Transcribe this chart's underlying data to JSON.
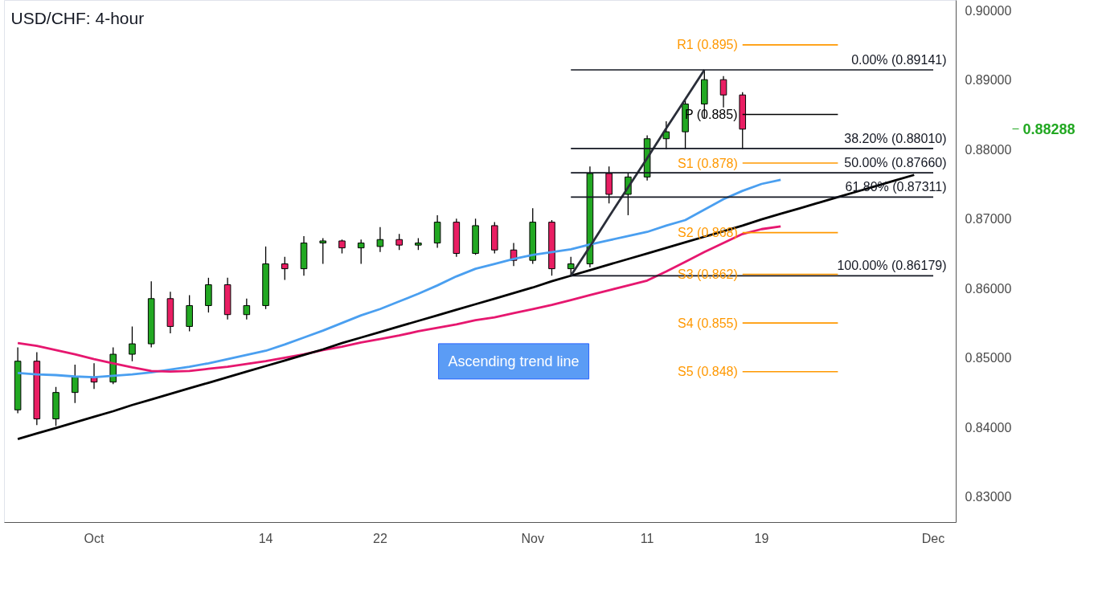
{
  "chart_data": {
    "type": "candlestick",
    "title": "USD/CHF: 4-hour",
    "categories": [
      null,
      null,
      null,
      null,
      "Oct",
      null,
      null,
      null,
      null,
      null,
      null,
      null,
      null,
      "14",
      null,
      null,
      null,
      null,
      null,
      "22",
      null,
      null,
      null,
      null,
      null,
      null,
      null,
      "Nov",
      null,
      null,
      null,
      null,
      null,
      "11",
      null,
      null,
      null,
      null,
      null,
      "19",
      null,
      null,
      null,
      null,
      null,
      null,
      null,
      null,
      "Dec"
    ],
    "ylim": [
      0.8263,
      0.9014
    ],
    "yticks": [
      {
        "value": 0.83,
        "label": "0.83000"
      },
      {
        "value": 0.84,
        "label": "0.84000"
      },
      {
        "value": 0.85,
        "label": "0.85000"
      },
      {
        "value": 0.86,
        "label": "0.86000"
      },
      {
        "value": 0.87,
        "label": "0.87000"
      },
      {
        "value": 0.88,
        "label": "0.88000"
      },
      {
        "value": 0.89,
        "label": "0.89000"
      },
      {
        "value": 0.9,
        "label": "0.90000"
      }
    ],
    "legend": false,
    "series": [
      {
        "ohlc": [
          [
            0.8425,
            0.8515,
            0.842,
            0.8495
          ],
          [
            0.8495,
            0.8508,
            0.8403,
            0.8412
          ],
          [
            0.8412,
            0.8458,
            0.8402,
            0.845
          ],
          [
            0.845,
            0.849,
            0.8435,
            0.8472
          ],
          [
            0.8472,
            0.8492,
            0.8455,
            0.8465
          ],
          [
            0.8465,
            0.8515,
            0.8462,
            0.8505
          ],
          [
            0.8505,
            0.8545,
            0.8495,
            0.852
          ],
          [
            0.852,
            0.861,
            0.8515,
            0.8585
          ],
          [
            0.8585,
            0.8595,
            0.8535,
            0.8545
          ],
          [
            0.8545,
            0.859,
            0.8538,
            0.8575
          ],
          [
            0.8575,
            0.8615,
            0.8565,
            0.8605
          ],
          [
            0.8605,
            0.8615,
            0.8555,
            0.8562
          ],
          [
            0.8562,
            0.8585,
            0.8555,
            0.8575
          ],
          [
            0.8575,
            0.866,
            0.857,
            0.8635
          ],
          [
            0.8635,
            0.8645,
            0.8612,
            0.8628
          ],
          [
            0.8628,
            0.8675,
            0.8618,
            0.8665
          ],
          [
            0.8665,
            0.8672,
            0.8635,
            0.8668
          ],
          [
            0.8668,
            0.867,
            0.865,
            0.8658
          ],
          [
            0.8658,
            0.867,
            0.8635,
            0.8665
          ],
          [
            0.866,
            0.8688,
            0.8652,
            0.867
          ],
          [
            0.867,
            0.8678,
            0.8655,
            0.8662
          ],
          [
            0.8662,
            0.8672,
            0.8655,
            0.8665
          ],
          [
            0.8665,
            0.8705,
            0.8658,
            0.8695
          ],
          [
            0.8695,
            0.87,
            0.8645,
            0.865
          ],
          [
            0.865,
            0.87,
            0.8648,
            0.869
          ],
          [
            0.869,
            0.8695,
            0.865,
            0.8655
          ],
          [
            0.8655,
            0.8665,
            0.8632,
            0.864
          ],
          [
            0.864,
            0.8715,
            0.8635,
            0.8695
          ],
          [
            0.8695,
            0.8698,
            0.8618,
            0.8628
          ],
          [
            0.8628,
            0.8645,
            0.86179,
            0.8635
          ],
          [
            0.8635,
            0.8775,
            0.863,
            0.8765
          ],
          [
            0.8765,
            0.8775,
            0.8722,
            0.8735
          ],
          [
            0.8735,
            0.8765,
            0.8705,
            0.876
          ],
          [
            0.876,
            0.882,
            0.8755,
            0.8815
          ],
          [
            0.8815,
            0.884,
            0.88,
            0.8825
          ],
          [
            0.8825,
            0.887,
            0.88,
            0.8865
          ],
          [
            0.8865,
            0.89141,
            0.8845,
            0.89
          ],
          [
            0.89,
            0.8905,
            0.886,
            0.8878
          ],
          [
            0.8878,
            0.8882,
            0.88,
            0.88288
          ],
          null,
          null,
          null,
          null,
          null,
          null,
          null,
          null,
          null,
          null
        ],
        "colors": [
          "#22a822",
          "#e91e63",
          "#22a822",
          "#22a822",
          "#e91e63",
          "#22a822",
          "#22a822",
          "#22a822",
          "#e91e63",
          "#22a822",
          "#22a822",
          "#e91e63",
          "#22a822",
          "#22a822",
          "#e91e63",
          "#22a822",
          "#22a822",
          "#e91e63",
          "#22a822",
          "#22a822",
          "#e91e63",
          "#22a822",
          "#22a822",
          "#e91e63",
          "#22a822",
          "#e91e63",
          "#e91e63",
          "#22a822",
          "#e91e63",
          "#22a822",
          "#22a822",
          "#e91e63",
          "#22a822",
          "#22a822",
          "#22a822",
          "#22a822",
          "#22a822",
          "#e91e63",
          "#e91e63",
          null,
          null,
          null,
          null,
          null,
          null,
          null,
          null,
          null,
          null
        ]
      },
      {
        "type": "line",
        "color": "#4a9ff0",
        "values": [
          0.8478,
          0.8476,
          0.8475,
          0.8473,
          0.8472,
          0.8474,
          0.8476,
          0.8479,
          0.8483,
          0.8487,
          0.8492,
          0.8498,
          0.8504,
          0.851,
          0.8519,
          0.8529,
          0.8539,
          0.855,
          0.8561,
          0.857,
          0.8581,
          0.8592,
          0.8604,
          0.8617,
          0.8628,
          0.8635,
          0.8642,
          0.8648,
          0.8652,
          0.8656,
          0.8663,
          0.8669,
          0.8675,
          0.8681,
          0.869,
          0.8698,
          0.8713,
          0.8728,
          0.874,
          0.875,
          0.8756,
          null,
          null,
          null,
          null,
          null,
          null,
          null,
          null
        ]
      },
      {
        "type": "line",
        "color": "#e6176f",
        "values": [
          0.8521,
          0.8517,
          0.8511,
          0.8505,
          0.8498,
          0.8492,
          0.8486,
          0.8481,
          0.848,
          0.8481,
          0.8484,
          0.8487,
          0.8491,
          0.8495,
          0.85,
          0.8505,
          0.8511,
          0.8516,
          0.8522,
          0.8527,
          0.8532,
          0.8538,
          0.8543,
          0.8548,
          0.8554,
          0.8558,
          0.8564,
          0.857,
          0.8576,
          0.8583,
          0.859,
          0.8597,
          0.8604,
          0.8611,
          0.8624,
          0.8638,
          0.8652,
          0.8665,
          0.8678,
          0.8685,
          0.8689,
          null,
          null,
          null,
          null,
          null,
          null,
          null,
          null
        ]
      },
      {
        "type": "line",
        "color": "#000000",
        "name": "Ascending trend line",
        "values": [
          0.8383,
          0.8391,
          0.8399,
          0.8407,
          0.8415,
          0.8423,
          0.8432,
          0.844,
          0.8448,
          0.8456,
          0.8464,
          0.8472,
          0.848,
          0.8488,
          0.8496,
          0.8504,
          0.8512,
          0.8521,
          0.8529,
          0.8537,
          0.8545,
          0.8553,
          0.8561,
          0.8569,
          0.8577,
          0.8585,
          0.8593,
          0.8601,
          0.861,
          0.8618,
          0.8626,
          0.8634,
          0.8642,
          0.865,
          0.8658,
          0.8666,
          0.8674,
          0.8682,
          0.869,
          0.8699,
          0.8707,
          0.8715,
          0.8723,
          0.8731,
          0.8739,
          0.8747,
          0.8755,
          0.8763,
          null
        ]
      },
      {
        "type": "line",
        "color": "#2a2e39",
        "values": [
          null,
          null,
          null,
          null,
          null,
          null,
          null,
          null,
          null,
          null,
          null,
          null,
          null,
          null,
          null,
          null,
          null,
          null,
          null,
          null,
          null,
          null,
          null,
          null,
          null,
          null,
          null,
          null,
          null,
          0.86179,
          0.866,
          0.8703,
          0.8745,
          0.8787,
          0.883,
          0.8872,
          0.89141,
          null,
          null,
          null,
          null,
          null,
          null,
          null,
          null,
          null,
          null,
          null,
          null
        ]
      },
      {
        "type": "line",
        "color": "#131722",
        "name": "0.00% (0.89141)",
        "values": [
          null,
          null,
          null,
          null,
          null,
          null,
          null,
          null,
          null,
          null,
          null,
          null,
          null,
          null,
          null,
          null,
          null,
          null,
          null,
          null,
          null,
          null,
          null,
          null,
          null,
          null,
          null,
          null,
          null,
          0.89141,
          0.89141,
          0.89141,
          0.89141,
          0.89141,
          0.89141,
          0.89141,
          0.89141,
          0.89141,
          0.89141,
          0.89141,
          0.89141,
          0.89141,
          0.89141,
          0.89141,
          0.89141,
          0.89141,
          0.89141,
          0.89141,
          0.89141
        ]
      },
      {
        "type": "line",
        "color": "#131722",
        "name": "38.20% (0.88010)",
        "values": [
          null,
          null,
          null,
          null,
          null,
          null,
          null,
          null,
          null,
          null,
          null,
          null,
          null,
          null,
          null,
          null,
          null,
          null,
          null,
          null,
          null,
          null,
          null,
          null,
          null,
          null,
          null,
          null,
          null,
          0.8801,
          0.8801,
          0.8801,
          0.8801,
          0.8801,
          0.8801,
          0.8801,
          0.8801,
          0.8801,
          0.8801,
          0.8801,
          0.8801,
          0.8801,
          0.8801,
          0.8801,
          0.8801,
          0.8801,
          0.8801,
          0.8801,
          0.8801
        ]
      },
      {
        "type": "line",
        "color": "#131722",
        "name": "50.00% (0.87660)",
        "values": [
          null,
          null,
          null,
          null,
          null,
          null,
          null,
          null,
          null,
          null,
          null,
          null,
          null,
          null,
          null,
          null,
          null,
          null,
          null,
          null,
          null,
          null,
          null,
          null,
          null,
          null,
          null,
          null,
          null,
          0.8766,
          0.8766,
          0.8766,
          0.8766,
          0.8766,
          0.8766,
          0.8766,
          0.8766,
          0.8766,
          0.8766,
          0.8766,
          0.8766,
          0.8766,
          0.8766,
          0.8766,
          0.8766,
          0.8766,
          0.8766,
          0.8766,
          0.8766
        ]
      },
      {
        "type": "line",
        "color": "#131722",
        "name": "61.80% (0.87311)",
        "values": [
          null,
          null,
          null,
          null,
          null,
          null,
          null,
          null,
          null,
          null,
          null,
          null,
          null,
          null,
          null,
          null,
          null,
          null,
          null,
          null,
          null,
          null,
          null,
          null,
          null,
          null,
          null,
          null,
          null,
          0.87311,
          0.87311,
          0.87311,
          0.87311,
          0.87311,
          0.87311,
          0.87311,
          0.87311,
          0.87311,
          0.87311,
          0.87311,
          0.87311,
          0.87311,
          0.87311,
          0.87311,
          0.87311,
          0.87311,
          0.87311,
          0.87311,
          0.87311
        ]
      },
      {
        "type": "line",
        "color": "#131722",
        "name": "100.00% (0.86179)",
        "values": [
          null,
          null,
          null,
          null,
          null,
          null,
          null,
          null,
          null,
          null,
          null,
          null,
          null,
          null,
          null,
          null,
          null,
          null,
          null,
          null,
          null,
          null,
          null,
          null,
          null,
          null,
          null,
          null,
          null,
          0.86179,
          0.86179,
          0.86179,
          0.86179,
          0.86179,
          0.86179,
          0.86179,
          0.86179,
          0.86179,
          0.86179,
          0.86179,
          0.86179,
          0.86179,
          0.86179,
          0.86179,
          0.86179,
          0.86179,
          0.86179,
          0.86179,
          0.86179
        ]
      },
      {
        "type": "line",
        "color": "#ff9800",
        "name": "R1 (0.895)",
        "values": [
          null,
          null,
          null,
          null,
          null,
          null,
          null,
          null,
          null,
          null,
          null,
          null,
          null,
          null,
          null,
          null,
          null,
          null,
          null,
          null,
          null,
          null,
          null,
          null,
          null,
          null,
          null,
          null,
          null,
          null,
          null,
          null,
          null,
          null,
          null,
          null,
          null,
          null,
          0.895,
          0.895,
          0.895,
          0.895,
          0.895,
          0.895,
          null,
          null,
          null,
          null,
          null
        ]
      },
      {
        "type": "line",
        "color": "#000000",
        "name": "P (0.885)",
        "values": [
          null,
          null,
          null,
          null,
          null,
          null,
          null,
          null,
          null,
          null,
          null,
          null,
          null,
          null,
          null,
          null,
          null,
          null,
          null,
          null,
          null,
          null,
          null,
          null,
          null,
          null,
          null,
          null,
          null,
          null,
          null,
          null,
          null,
          null,
          null,
          null,
          null,
          null,
          0.885,
          0.885,
          0.885,
          0.885,
          0.885,
          0.885,
          null,
          null,
          null,
          null,
          null
        ]
      },
      {
        "type": "line",
        "color": "#ff9800",
        "name": "S1 (0.878)",
        "values": [
          null,
          null,
          null,
          null,
          null,
          null,
          null,
          null,
          null,
          null,
          null,
          null,
          null,
          null,
          null,
          null,
          null,
          null,
          null,
          null,
          null,
          null,
          null,
          null,
          null,
          null,
          null,
          null,
          null,
          null,
          null,
          null,
          null,
          null,
          null,
          null,
          null,
          null,
          0.878,
          0.878,
          0.878,
          0.878,
          0.878,
          0.878,
          null,
          null,
          null,
          null,
          null
        ]
      },
      {
        "type": "line",
        "color": "#ff9800",
        "name": "S2 (0.868)",
        "values": [
          null,
          null,
          null,
          null,
          null,
          null,
          null,
          null,
          null,
          null,
          null,
          null,
          null,
          null,
          null,
          null,
          null,
          null,
          null,
          null,
          null,
          null,
          null,
          null,
          null,
          null,
          null,
          null,
          null,
          null,
          null,
          null,
          null,
          null,
          null,
          null,
          null,
          null,
          0.868,
          0.868,
          0.868,
          0.868,
          0.868,
          0.868,
          null,
          null,
          null,
          null,
          null
        ]
      },
      {
        "type": "line",
        "color": "#ff9800",
        "name": "S3 (0.862)",
        "values": [
          null,
          null,
          null,
          null,
          null,
          null,
          null,
          null,
          null,
          null,
          null,
          null,
          null,
          null,
          null,
          null,
          null,
          null,
          null,
          null,
          null,
          null,
          null,
          null,
          null,
          null,
          null,
          null,
          null,
          null,
          null,
          null,
          null,
          null,
          null,
          null,
          null,
          null,
          0.862,
          0.862,
          0.862,
          0.862,
          0.862,
          0.862,
          null,
          null,
          null,
          null,
          null
        ]
      },
      {
        "type": "line",
        "color": "#ff9800",
        "name": "S4 (0.855)",
        "values": [
          null,
          null,
          null,
          null,
          null,
          null,
          null,
          null,
          null,
          null,
          null,
          null,
          null,
          null,
          null,
          null,
          null,
          null,
          null,
          null,
          null,
          null,
          null,
          null,
          null,
          null,
          null,
          null,
          null,
          null,
          null,
          null,
          null,
          null,
          null,
          null,
          null,
          null,
          0.855,
          0.855,
          0.855,
          0.855,
          0.855,
          0.855,
          null,
          null,
          null,
          null,
          null
        ]
      },
      {
        "type": "line",
        "color": "#ff9800",
        "name": "S5 (0.848)",
        "values": [
          null,
          null,
          null,
          null,
          null,
          null,
          null,
          null,
          null,
          null,
          null,
          null,
          null,
          null,
          null,
          null,
          null,
          null,
          null,
          null,
          null,
          null,
          null,
          null,
          null,
          null,
          null,
          null,
          null,
          null,
          null,
          null,
          null,
          null,
          null,
          null,
          null,
          null,
          0.848,
          0.848,
          0.848,
          0.848,
          0.848,
          0.848,
          null,
          null,
          null,
          null,
          null
        ]
      }
    ],
    "annotations": [
      "0.88288"
    ]
  }
}
